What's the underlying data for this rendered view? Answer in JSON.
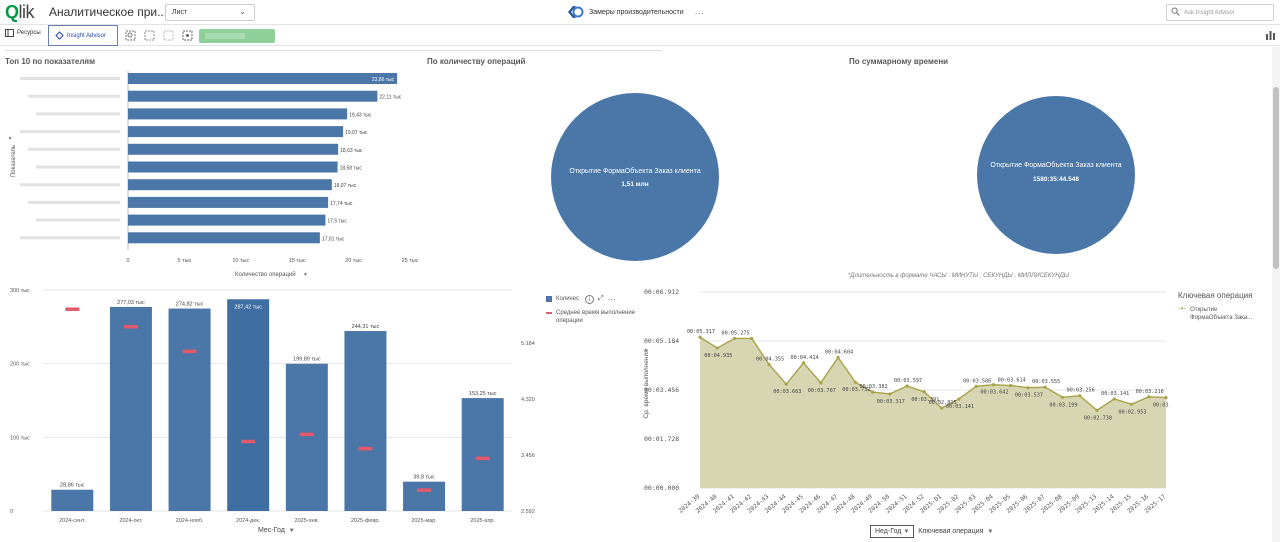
{
  "header": {
    "logo": "Qlik",
    "app_title": "Аналитическое при...",
    "sheet_select": "Лист",
    "center_title": "Замеры производительности",
    "more": "···",
    "search_placeholder": "Ask Insight Advisor"
  },
  "toolbar": {
    "resources_label": "Ресурсы",
    "insight_advisor_label": "Insight Advisor"
  },
  "colors": {
    "bar": "#4a77a8",
    "marker": "#e05a6a",
    "area_fill": "#d8d6b2",
    "area_line": "#a8a24a",
    "accent_green": "#009845"
  },
  "panels": {
    "top10": {
      "title": "Топ 10 по показателям",
      "ylabel": "Показатель",
      "xlabel": "Количество операций"
    },
    "pie1": {
      "title": "По количеству операций",
      "label": "Открытие ФормаОбъекта Заказ клиента",
      "value": "1,51 млн"
    },
    "pie2": {
      "title": "По суммарному времени",
      "label": "Открытие ФормаОбъекта Заказ клиента",
      "value": "1580:35:44.548"
    },
    "combo": {
      "xlabel": "Мес-Год",
      "legend_count": "Количес",
      "legend_avg": "Среднее время выполнение операции"
    },
    "line": {
      "note": "*Длительность в формате ЧАСЫ : МИНУТЫ : СЕКУНДЫ . МИЛЛИСЕКУНДЫ",
      "ylabel": "Ср. время выполнения",
      "legend_title": "Ключевая операция",
      "legend_item": "Открытие ФормаОбъекта Зака...",
      "dim1": "Нед-Год",
      "dim2": "Ключевая операция"
    }
  },
  "chart_data": [
    {
      "type": "bar",
      "orientation": "horizontal",
      "title": "Топ 10 по показателям",
      "xlabel": "Количество операций",
      "ylabel": "Показатель",
      "value_labels": [
        "23,86 тыс",
        "22,11 тыс",
        "19,43 тыс",
        "19,07 тыс",
        "18,63 тыс",
        "18,58 тыс",
        "18,07 тыс",
        "17,74 тыс",
        "17,5 тыс",
        "17,01 тыс"
      ],
      "values": [
        23.86,
        22.11,
        19.43,
        19.07,
        18.63,
        18.58,
        18.07,
        17.74,
        17.5,
        17.01
      ],
      "xlim": [
        0,
        25
      ],
      "xticks": [
        "0",
        "5 тыс",
        "10 тыс",
        "15 тыс",
        "20 тыс",
        "25 тыс"
      ]
    },
    {
      "type": "pie",
      "title": "По количеству операций",
      "slices": [
        {
          "label": "Открытие ФормаОбъекта Заказ клиента",
          "value_label": "1,51 млн",
          "fraction": 1.0
        }
      ]
    },
    {
      "type": "pie",
      "title": "По суммарному времени",
      "slices": [
        {
          "label": "Открытие ФормаОбъекта Заказ клиента",
          "value_label": "1580:35:44.548",
          "fraction": 1.0
        }
      ]
    },
    {
      "type": "bar",
      "title": "",
      "xlabel": "Мес-Год",
      "categories": [
        "2024-сент.",
        "2024-окт.",
        "2024-нояб.",
        "2024-дек.",
        "2025-янв.",
        "2025-февр.",
        "2025-мар.",
        "2025-апр."
      ],
      "series": [
        {
          "name": "Количес",
          "values": [
            28.86,
            277.03,
            274.82,
            287.42,
            199.89,
            244.31,
            39.8,
            153.25
          ],
          "value_labels": [
            "28,86 тыс",
            "277,03 тыс",
            "274,82 тыс",
            "287,42 тыс",
            "199,89 тыс",
            "244,31 тыс",
            "39,8 тыс",
            "153,25 тыс"
          ]
        },
        {
          "name": "Среднее время выполнение операции",
          "axis": "right",
          "values": [
            5.7,
            5.43,
            5.05,
            3.66,
            3.77,
            3.55,
            2.91,
            3.4
          ]
        }
      ],
      "ylim": [
        0,
        300
      ],
      "yticks_left": [
        "0",
        "100 тыс",
        "200 тыс",
        "300 тыс"
      ],
      "ylim_right": [
        2.592,
        6.0
      ],
      "yticks_right": [
        "2.592",
        "3.456",
        "4.320",
        "5.184"
      ]
    },
    {
      "type": "area",
      "title": "",
      "ylabel": "Ср. время выполнения",
      "x": [
        "2024-39",
        "2024-40",
        "2024-41",
        "2024-42",
        "2024-43",
        "2024-44",
        "2024-45",
        "2024-46",
        "2024-47",
        "2024-48",
        "2024-49",
        "2024-50",
        "2024-51",
        "2024-52",
        "2025-01",
        "2025-02",
        "2025-03",
        "2025-04",
        "2025-05",
        "2025-06",
        "2025-07",
        "2025-08",
        "2025-09",
        "2025-13",
        "2025-14",
        "2025-15",
        "2025-16",
        "2025-17"
      ],
      "series": [
        {
          "name": "Открытие ФормаОбъекта Зака...",
          "values": [
            5.317,
            4.935,
            5.275,
            5.275,
            4.355,
            3.663,
            4.414,
            3.707,
            4.604,
            3.732,
            3.382,
            3.317,
            3.597,
            3.391,
            2.815,
            3.141,
            3.586,
            3.642,
            3.614,
            3.537,
            3.555,
            3.199,
            3.256,
            2.738,
            3.141,
            2.953,
            3.216,
            3.188
          ],
          "value_labels": [
            "00:05.317",
            "00:04.935",
            "00:05.275",
            "",
            "00:04.355",
            "00:03.663",
            "00:04.414",
            "00:03.707",
            "00:04.604",
            "00:03.732",
            "00:03.382",
            "00:03.317",
            "00:03.597",
            "00:03.391",
            "00:02.815",
            "00:03.141",
            "00:03.586",
            "00:03.642",
            "00:03.614",
            "00:03.537",
            "00:03.555",
            "00:03.199",
            "00:03.256",
            "00:02.738",
            "00:03.141",
            "00:02.953",
            "00:03.216",
            "00:03.188"
          ]
        }
      ],
      "ylim": [
        0,
        6.912
      ],
      "yticks": [
        "00:00.000",
        "00:01.728",
        "00:03.456",
        "00:05.184",
        "00:06.912"
      ]
    }
  ]
}
